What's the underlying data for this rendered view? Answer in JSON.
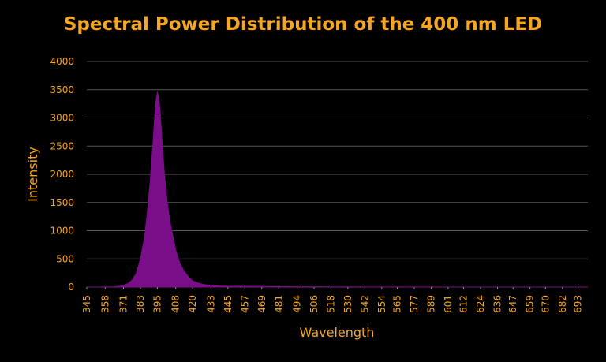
{
  "chart_data": {
    "type": "area",
    "title": "Spectral Power Distribution of the 400 nm LED",
    "xlabel": "Wavelength",
    "ylabel": "Intensity",
    "ylim": [
      0,
      4000
    ],
    "yticks": [
      0,
      500,
      1000,
      1500,
      2000,
      2500,
      3000,
      3500,
      4000
    ],
    "xlim": [
      345,
      700
    ],
    "xticks": [
      345,
      358,
      371,
      383,
      395,
      408,
      420,
      433,
      445,
      457,
      469,
      481,
      494,
      506,
      518,
      530,
      542,
      554,
      565,
      577,
      589,
      601,
      612,
      624,
      636,
      647,
      659,
      670,
      682,
      693
    ],
    "grid": true,
    "legend": "none",
    "series": [
      {
        "x": [
          345,
          352,
          358,
          364,
          368,
          371,
          374,
          377,
          380,
          383,
          386,
          388,
          390,
          392,
          393,
          394,
          395,
          396,
          397,
          398,
          400,
          402,
          404,
          406,
          408,
          411,
          414,
          417,
          420,
          424,
          428,
          433,
          439,
          445,
          457,
          469,
          481,
          494,
          506,
          518,
          530,
          542,
          554,
          565,
          577,
          589,
          601,
          612,
          624,
          636,
          647,
          659,
          670,
          682,
          693,
          700
        ],
        "values": [
          0,
          0,
          2,
          5,
          15,
          30,
          60,
          120,
          240,
          500,
          900,
          1350,
          1900,
          2600,
          3000,
          3300,
          3450,
          3380,
          3100,
          2700,
          2000,
          1500,
          1150,
          900,
          650,
          420,
          280,
          180,
          110,
          70,
          45,
          30,
          20,
          15,
          12,
          10,
          8,
          6,
          5,
          4,
          3,
          2,
          2,
          1,
          1,
          1,
          0,
          0,
          0,
          0,
          0,
          0,
          0,
          0,
          0,
          0
        ]
      }
    ]
  },
  "colors": {
    "background": "#000000",
    "text": "#f5a623",
    "fill": "#7b0f8a",
    "grid": "#595959"
  }
}
